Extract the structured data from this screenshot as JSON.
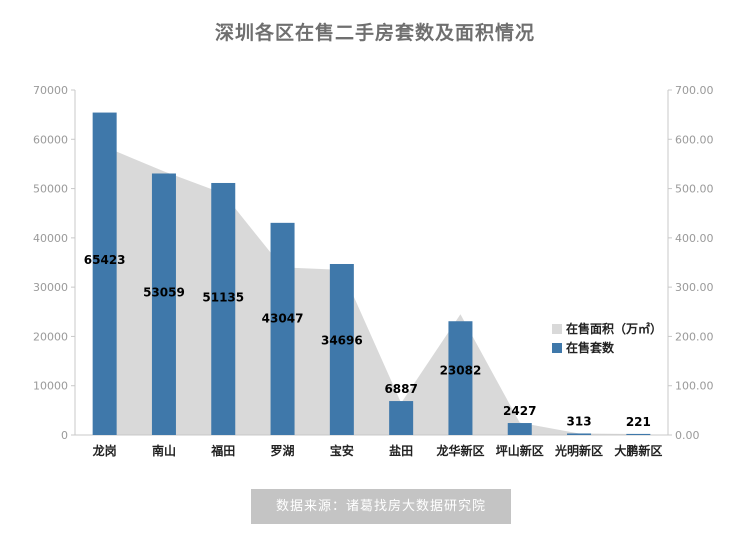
{
  "title": "深圳各区在售二手房套数及面积情况",
  "source_text": "数据来源：诸葛找房大数据研究院",
  "colors": {
    "bar": "#3f78aa",
    "area": "#d9d9d9",
    "title": "#6f6f6f",
    "axis": "#9a9a9a"
  },
  "chart_data": {
    "type": "bar",
    "categories": [
      "龙岗",
      "南山",
      "福田",
      "罗湖",
      "宝安",
      "盐田",
      "龙华新区",
      "坪山新区",
      "光明新区",
      "大鹏新区"
    ],
    "series": [
      {
        "name": "在售套数",
        "type": "bar",
        "axis": "left",
        "values": [
          65423,
          53059,
          51135,
          43047,
          34696,
          6887,
          23082,
          2427,
          313,
          221
        ]
      },
      {
        "name": "在售面积（万㎡）",
        "type": "area",
        "axis": "right",
        "values": [
          585,
          535,
          490,
          340,
          335,
          65,
          245,
          25,
          3,
          2
        ]
      }
    ],
    "y_left": {
      "min": 0,
      "max": 70000,
      "ticks": [
        "0",
        "10000",
        "20000",
        "30000",
        "40000",
        "50000",
        "60000",
        "70000"
      ]
    },
    "y_right": {
      "min": 0,
      "max": 700,
      "ticks": [
        "0.00",
        "100.00",
        "200.00",
        "300.00",
        "400.00",
        "500.00",
        "600.00",
        "700.00"
      ]
    },
    "legend_position": "right"
  }
}
